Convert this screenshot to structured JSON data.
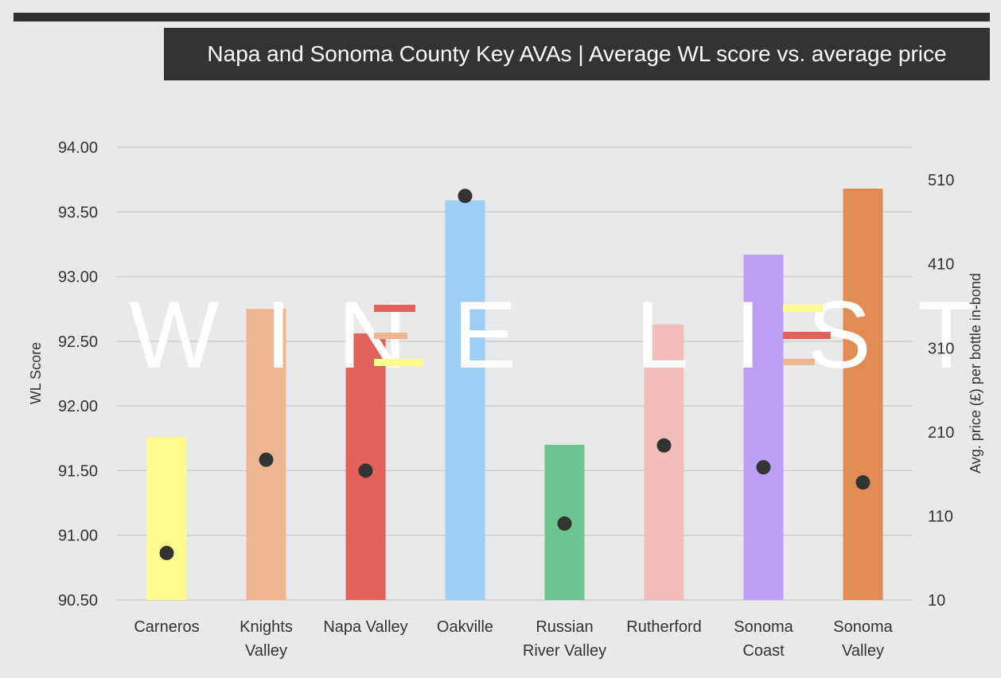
{
  "title": "Napa and Sonoma County Key AVAs | Average WL score vs. average price",
  "watermark": "WINE  LISTER",
  "chart_data": {
    "type": "bar",
    "title": "Napa and Sonoma County Key AVAs | Average WL score vs. average price",
    "categories": [
      [
        "Carneros"
      ],
      [
        "Knights",
        "Valley"
      ],
      [
        "Napa Valley"
      ],
      [
        "Oakville"
      ],
      [
        "Russian",
        "River Valley"
      ],
      [
        "Rutherford"
      ],
      [
        "Sonoma",
        "Coast"
      ],
      [
        "Sonoma",
        "Valley"
      ]
    ],
    "series": [
      {
        "name": "",
        "kind": "bar",
        "axis": "left",
        "values": [
          91.76,
          92.75,
          92.56,
          93.59,
          91.7,
          92.63,
          93.17,
          93.68
        ],
        "colors": [
          "#fdfb8e",
          "#eeb592",
          "#e2615b",
          "#9ccff3",
          "#6cc48e",
          "#f2bdbd",
          "#b99ef3",
          "#e38b54"
        ]
      },
      {
        "name": "",
        "kind": "scatter",
        "axis": "right",
        "values": [
          66,
          177,
          164,
          491,
          101,
          194,
          168,
          150
        ],
        "color": "#333333"
      }
    ],
    "ylabel": "WL Score",
    "ylim": [
      90.5,
      94.0
    ],
    "yticks": [
      "90.50",
      "91.00",
      "91.50",
      "92.00",
      "92.50",
      "93.00",
      "93.50",
      "94.00"
    ],
    "y2label": "Avg. price (£) per bottle in-bond",
    "y2lim": [
      10,
      549
    ],
    "y2ticks": [
      "10",
      "110",
      "210",
      "310",
      "410",
      "510"
    ],
    "grid": true
  }
}
